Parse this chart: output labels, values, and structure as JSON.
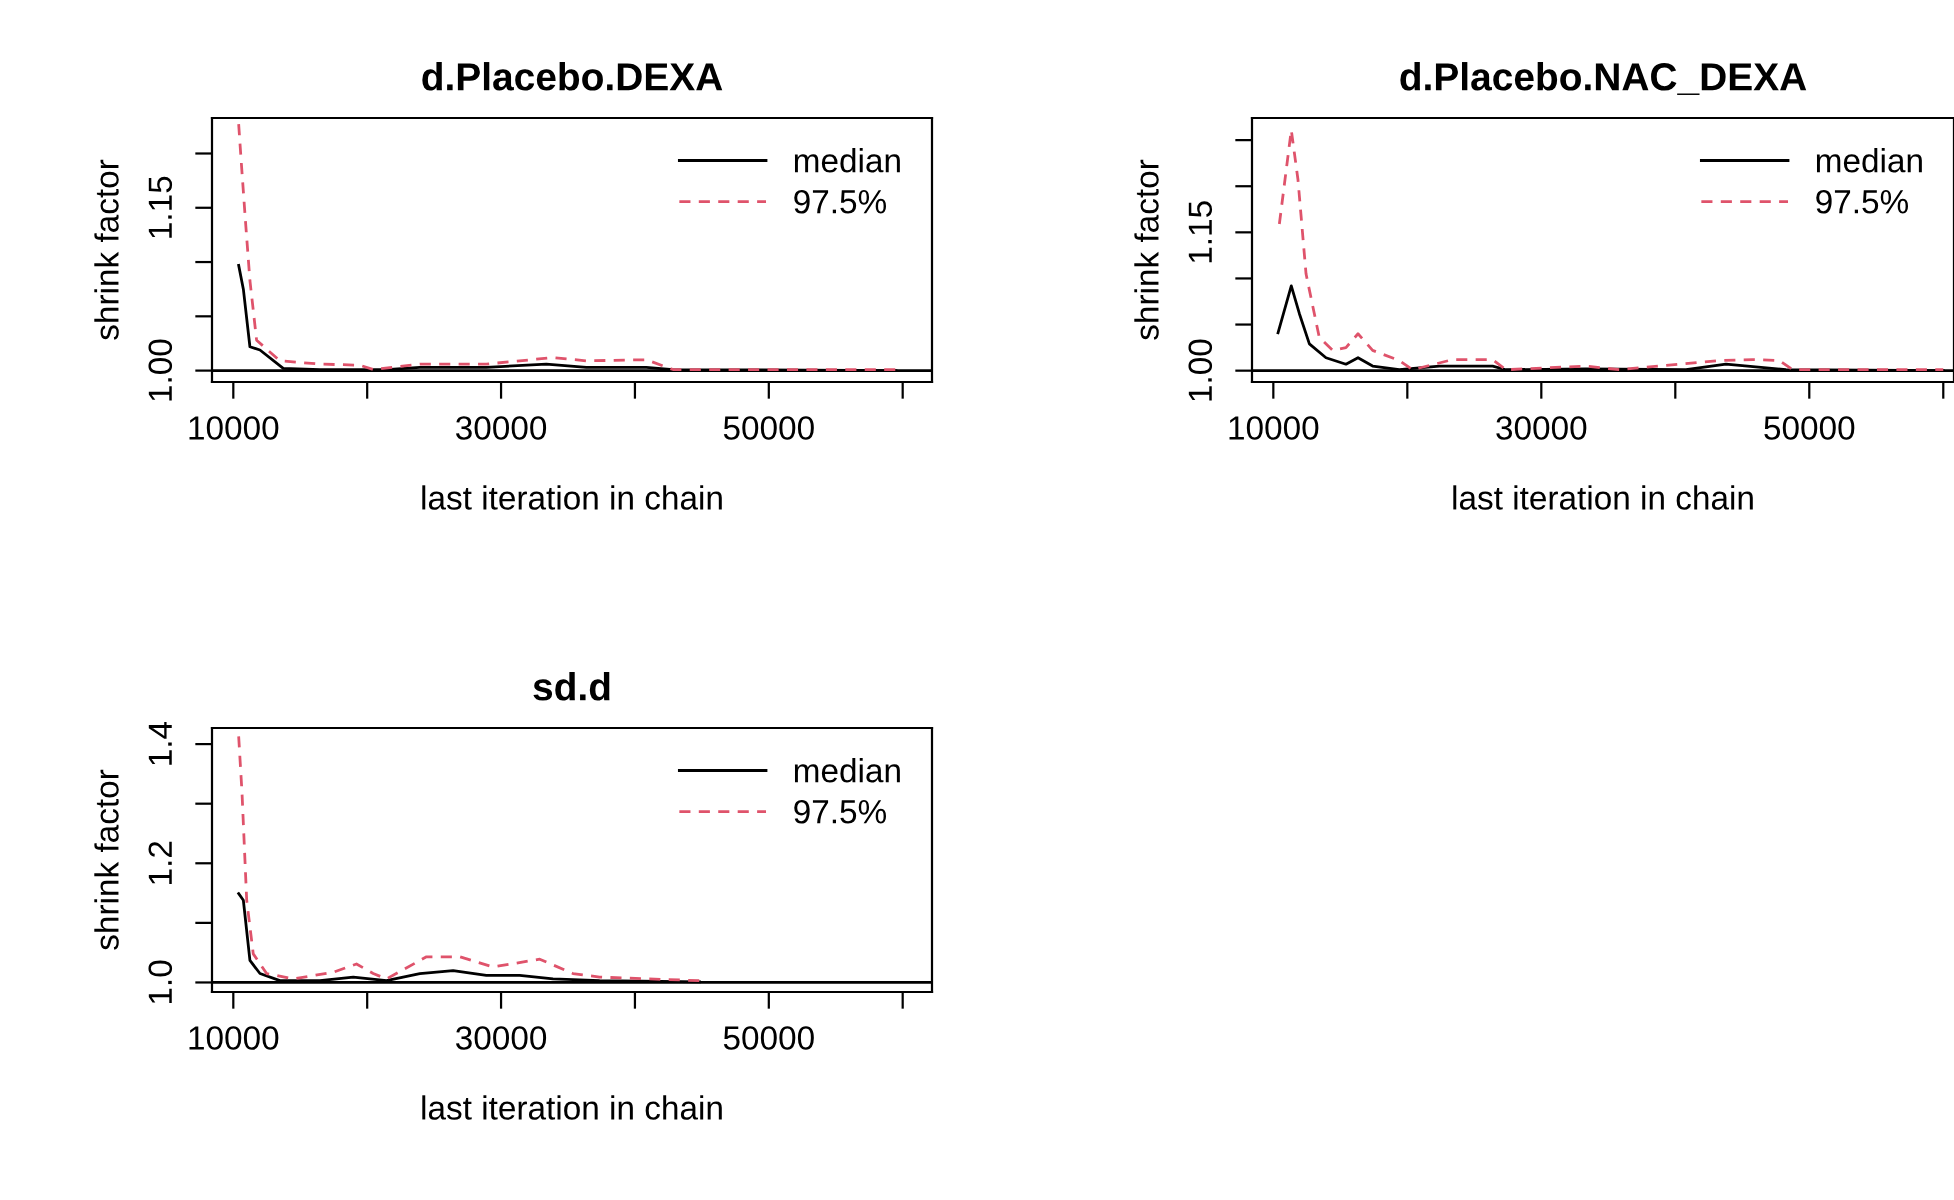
{
  "chart_data": [
    {
      "type": "line",
      "title": "d.Placebo.DEXA",
      "xlabel": "last iteration in chain",
      "ylabel": "shrink factor",
      "xlim": [
        8408,
        62190
      ],
      "ylim": [
        0.9895,
        1.2327
      ],
      "xticks": [
        10000,
        {
          "value": 20000,
          "label": null
        },
        30000,
        {
          "value": 40000,
          "label": null
        },
        50000,
        {
          "value": 60000,
          "label": null
        }
      ],
      "yticks": [
        {
          "value": 1,
          "label": "1.00"
        },
        {
          "value": 1.05,
          "label": null
        },
        {
          "value": 1.1,
          "label": null
        },
        {
          "value": 1.15,
          "label": "1.15"
        },
        {
          "value": 1.2,
          "label": null
        }
      ],
      "legend": "top right",
      "ref_lines": [
        {
          "axis": "y",
          "value": 1,
          "color": "#000000",
          "line_style": "solid"
        }
      ],
      "series": [
        {
          "name": "median",
          "color": "#000000",
          "line_style": "solid",
          "x": [
            10400,
            10750,
            11240,
            11990,
            13730,
            16470,
            21440,
            23930,
            28900,
            33380,
            36370,
            40850,
            42840,
            59500
          ],
          "values": [
            1.097,
            1.075,
            1.022,
            1.019,
            1.002,
            1.001,
            1.001,
            1.003,
            1.003,
            1.006,
            1.003,
            1.003,
            1.001,
            1.0
          ]
        },
        {
          "name": "97.5%",
          "color": "#df536b",
          "line_style": "dashed",
          "x": [
            10400,
            10600,
            10900,
            11240,
            11740,
            13480,
            16470,
            19450,
            20450,
            23930,
            28900,
            33880,
            36370,
            40850,
            42840,
            59500
          ],
          "values": [
            1.227,
            1.191,
            1.139,
            1.083,
            1.028,
            1.009,
            1.006,
            1.005,
            1.001,
            1.006,
            1.006,
            1.012,
            1.009,
            1.01,
            1.001,
            1.001
          ]
        }
      ]
    },
    {
      "type": "line",
      "title": "d.Placebo.NAC_DEXA",
      "xlabel": "last iteration in chain",
      "ylabel": "shrink factor",
      "xlim": [
        8408,
        60800
      ],
      "ylim": [
        0.9877,
        1.274
      ],
      "xticks": [
        10000,
        {
          "value": 20000,
          "label": null
        },
        30000,
        {
          "value": 40000,
          "label": null
        },
        50000,
        {
          "value": 60000,
          "label": null
        }
      ],
      "yticks": [
        {
          "value": 1,
          "label": "1.00"
        },
        {
          "value": 1.05,
          "label": null
        },
        {
          "value": 1.1,
          "label": null
        },
        {
          "value": 1.15,
          "label": "1.15"
        },
        {
          "value": 1.2,
          "label": null
        },
        {
          "value": 1.25,
          "label": null
        }
      ],
      "legend": "top right",
      "ref_lines": [
        {
          "axis": "y",
          "value": 1,
          "color": "#000000",
          "line_style": "solid"
        }
      ],
      "series": [
        {
          "name": "median",
          "color": "#000000",
          "line_style": "solid",
          "x": [
            10350,
            11340,
            11940,
            12690,
            13930,
            15420,
            16320,
            17410,
            19400,
            22390,
            26370,
            27360,
            33330,
            40800,
            43780,
            48260,
            60000
          ],
          "values": [
            1.041,
            1.092,
            1.062,
            1.029,
            1.014,
            1.007,
            1.014,
            1.005,
            1.001,
            1.005,
            1.005,
            1.001,
            1.002,
            1.001,
            1.007,
            1.001,
            1.0
          ]
        },
        {
          "name": "97.5%",
          "color": "#df536b",
          "line_style": "dashed",
          "x": [
            10450,
            11340,
            11840,
            12440,
            13430,
            14430,
            15420,
            16320,
            17410,
            19400,
            20390,
            23380,
            26370,
            27360,
            33330,
            35820,
            43280,
            45770,
            47760,
            48760,
            60000
          ],
          "values": [
            1.159,
            1.261,
            1.207,
            1.105,
            1.036,
            1.022,
            1.025,
            1.04,
            1.022,
            1.011,
            1.001,
            1.012,
            1.012,
            1.001,
            1.005,
            1.001,
            1.011,
            1.012,
            1.011,
            1.001,
            1.001
          ]
        }
      ]
    },
    {
      "type": "line",
      "title": "sd.d",
      "xlabel": "last iteration in chain",
      "ylabel": "shrink factor",
      "xlim": [
        8408,
        62190
      ],
      "ylim": [
        0.984,
        1.427
      ],
      "xticks": [
        10000,
        {
          "value": 20000,
          "label": null
        },
        30000,
        {
          "value": 40000,
          "label": null
        },
        50000,
        {
          "value": 60000,
          "label": null
        }
      ],
      "yticks": [
        {
          "value": 1,
          "label": "1.0"
        },
        {
          "value": 1.1,
          "label": null
        },
        {
          "value": 1.2,
          "label": "1.2"
        },
        {
          "value": 1.3,
          "label": null
        },
        {
          "value": 1.4,
          "label": "1.4"
        }
      ],
      "legend": "top right",
      "ref_lines": [
        {
          "axis": "y",
          "value": 1,
          "color": "#000000",
          "line_style": "solid"
        }
      ],
      "series": [
        {
          "name": "median",
          "color": "#000000",
          "line_style": "solid",
          "x": [
            10400,
            10750,
            11240,
            11990,
            13480,
            16470,
            18960,
            21440,
            23930,
            26420,
            28900,
            31390,
            33880,
            37360,
            44830
          ],
          "values": [
            1.149,
            1.138,
            1.037,
            1.015,
            1.003,
            1.003,
            1.009,
            1.003,
            1.015,
            1.02,
            1.012,
            1.012,
            1.006,
            1.003,
            1.001
          ]
        },
        {
          "name": "97.5%",
          "color": "#df536b",
          "line_style": "dashed",
          "x": [
            10400,
            10650,
            11000,
            11490,
            12490,
            14480,
            17460,
            19200,
            20450,
            21440,
            24430,
            26920,
            29400,
            32890,
            35370,
            37360,
            44830
          ],
          "values": [
            1.413,
            1.318,
            1.138,
            1.048,
            1.015,
            1.006,
            1.017,
            1.031,
            1.015,
            1.006,
            1.043,
            1.043,
            1.026,
            1.039,
            1.015,
            1.009,
            1.003
          ]
        }
      ]
    }
  ]
}
